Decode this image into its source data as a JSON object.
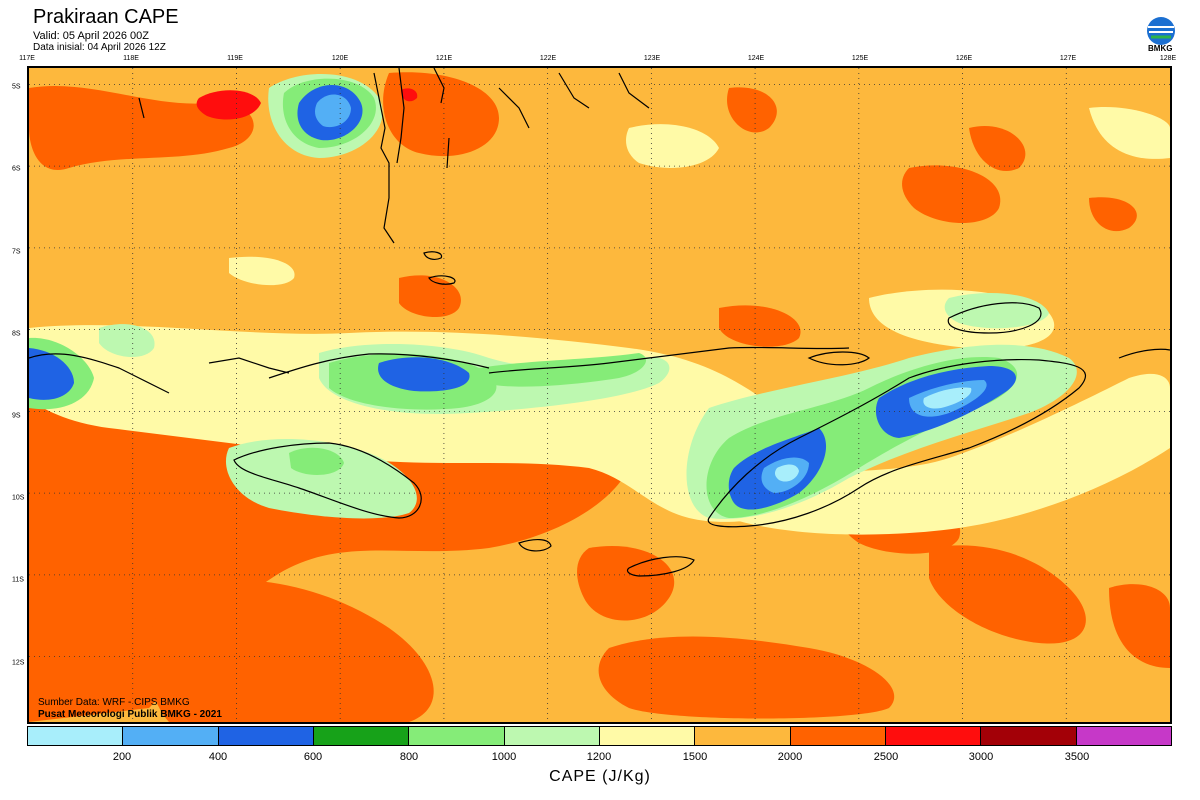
{
  "header": {
    "title": "Prakiraan CAPE",
    "valid": "Valid: 05 April 2026 00Z",
    "init": "Data inisial: 04 April 2026 12Z"
  },
  "logo": {
    "text": "BMKG",
    "icon": "bmkg-logo-icon"
  },
  "map": {
    "lon_labels": [
      "117E",
      "118E",
      "119E",
      "120E",
      "121E",
      "122E",
      "123E",
      "124E",
      "125E",
      "126E",
      "127E",
      "128E"
    ],
    "lat_labels": [
      "5S",
      "6S",
      "7S",
      "8S",
      "9S",
      "10S",
      "11S",
      "12S"
    ],
    "lon_range": [
      117,
      128
    ],
    "lat_range": [
      -4.8,
      -12.8
    ],
    "grid": "dotted"
  },
  "credits": {
    "source": "Sumber Data: WRF - CIPS BMKG",
    "publisher": "Pusat Meteorologi Publik BMKG - 2021"
  },
  "colorbar": {
    "colors": [
      "#a8eefb",
      "#53aff5",
      "#1f63e4",
      "#17a219",
      "#85ec78",
      "#bdf8b0",
      "#fffaa7",
      "#fdb83d",
      "#ff6200",
      "#ff0d0d",
      "#a30007",
      "#c638c8"
    ],
    "ticks": [
      "200",
      "400",
      "600",
      "800",
      "1000",
      "1200",
      "1500",
      "2000",
      "2500",
      "3000",
      "3500"
    ],
    "label": "CAPE (J/Kg)"
  },
  "palette": {
    "ocean": "#fdb83d",
    "orange": "#ff6200",
    "yellow": "#fffaa7",
    "lightgreen": "#bdf8b0",
    "green": "#85ec78",
    "darkgreen": "#17a219",
    "blue": "#1f63e4",
    "midblue": "#53aff5",
    "cyan": "#a8eefb",
    "red": "#ff0d0d"
  }
}
